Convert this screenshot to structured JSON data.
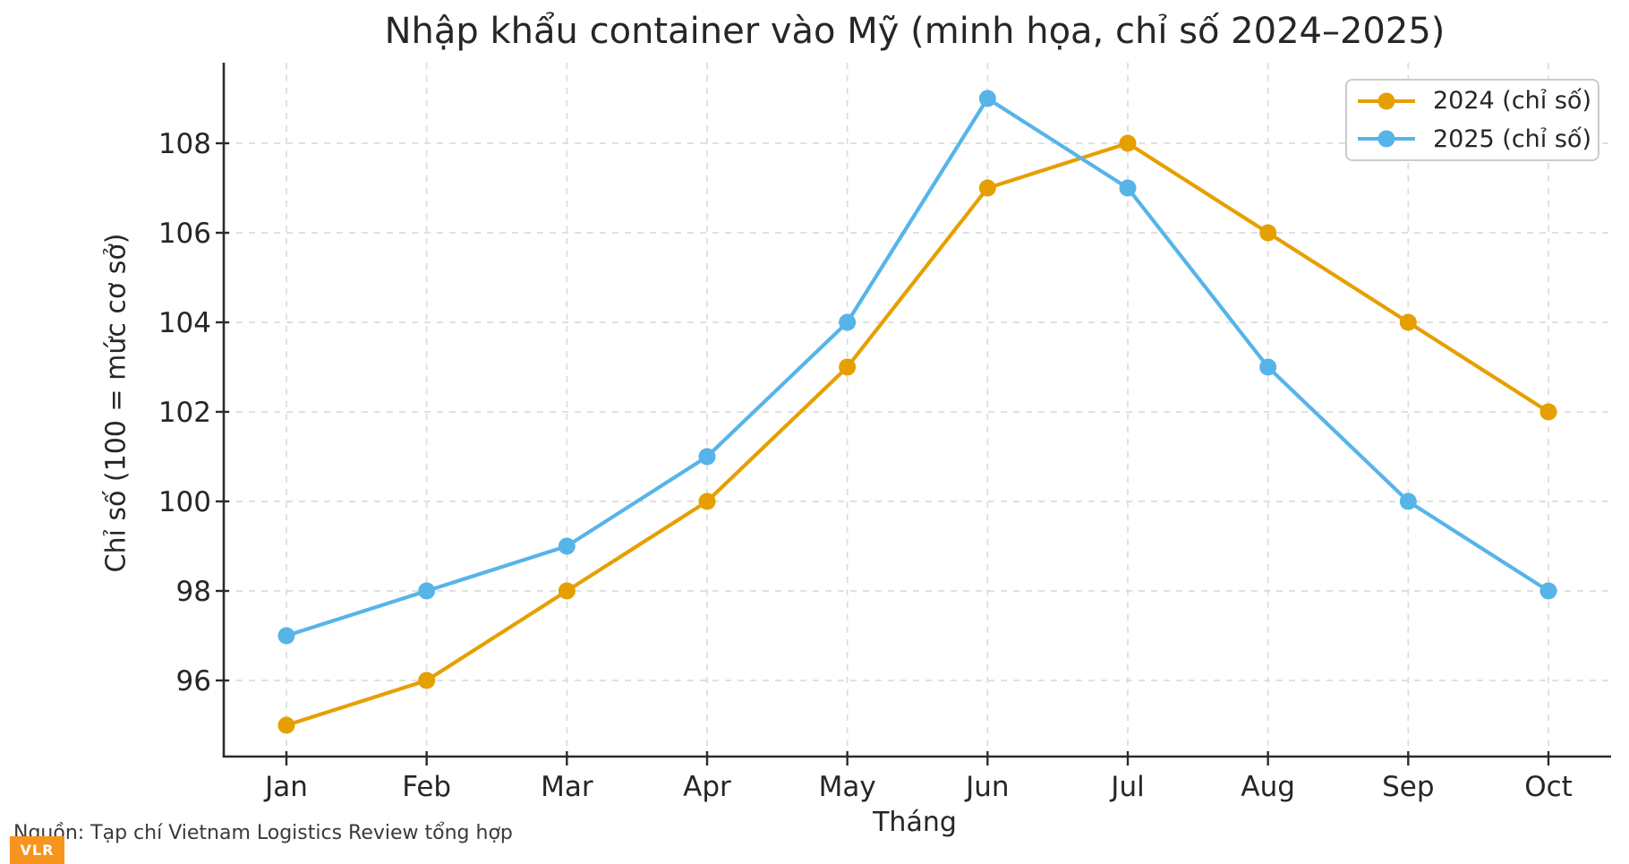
{
  "chart_data": {
    "type": "line",
    "title": "Nhập khẩu container vào Mỹ (minh họa, chỉ số 2024–2025)",
    "xlabel": "Tháng",
    "ylabel": "Chỉ số (100 = mức cơ sở)",
    "categories": [
      "Jan",
      "Feb",
      "Mar",
      "Apr",
      "May",
      "Jun",
      "Jul",
      "Aug",
      "Sep",
      "Oct"
    ],
    "series": [
      {
        "name": "2024 (chỉ số)",
        "color": "#E69F00",
        "values": [
          95,
          96,
          98,
          100,
          103,
          107,
          108,
          106,
          104,
          102
        ]
      },
      {
        "name": "2025 (chỉ số)",
        "color": "#56B4E9",
        "values": [
          97,
          98,
          99,
          101,
          104,
          109,
          107,
          103,
          100,
          98
        ]
      }
    ],
    "yticks": [
      96,
      98,
      100,
      102,
      104,
      106,
      108
    ],
    "ylim": [
      94.3,
      109.8
    ],
    "grid": true,
    "legend_position": "upper right"
  },
  "source": {
    "text": "Nguồn: Tạp chí Vietnam Logistics Review tổng hợp"
  },
  "badge": {
    "label": "VLR",
    "color": "#F7941D"
  },
  "style": {
    "grid_color": "#dcdcdc",
    "spine_color": "#2b2b2b",
    "text_color": "#262626"
  }
}
